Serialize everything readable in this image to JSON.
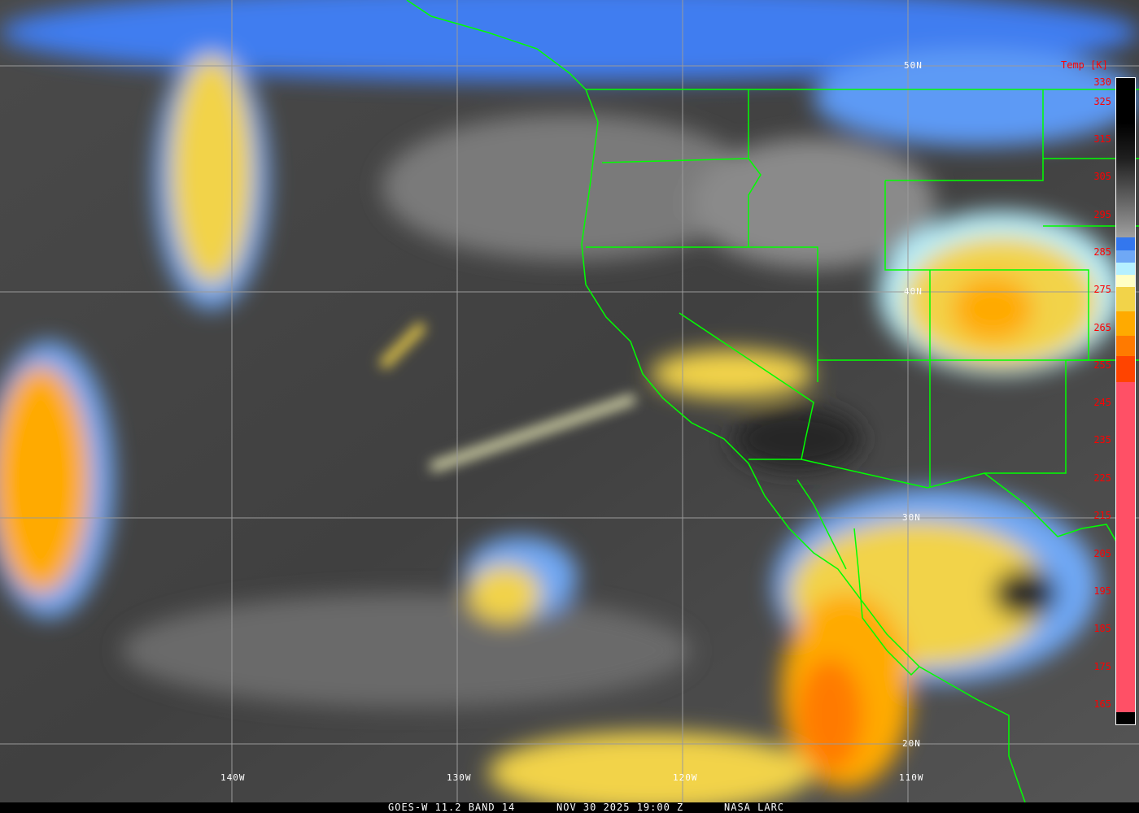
{
  "colorbar": {
    "title": "Temp [K]",
    "ticks": [
      "330",
      "325",
      "315",
      "305",
      "295",
      "285",
      "275",
      "265",
      "255",
      "245",
      "235",
      "225",
      "215",
      "205",
      "195",
      "185",
      "175",
      "165"
    ],
    "label_color": "#ff0000"
  },
  "grid": {
    "lat_labels": [
      "50N",
      "40N",
      "30N",
      "20N"
    ],
    "lon_labels": [
      "140W",
      "130W",
      "120W",
      "110W"
    ],
    "grid_color": "#9a9a9a",
    "boundary_color": "#00ff00"
  },
  "footer": {
    "product": "GOES-W 11.2 BAND 14",
    "datetime": "NOV 30 2025 19:00 Z",
    "credit": "NASA LARC"
  }
}
